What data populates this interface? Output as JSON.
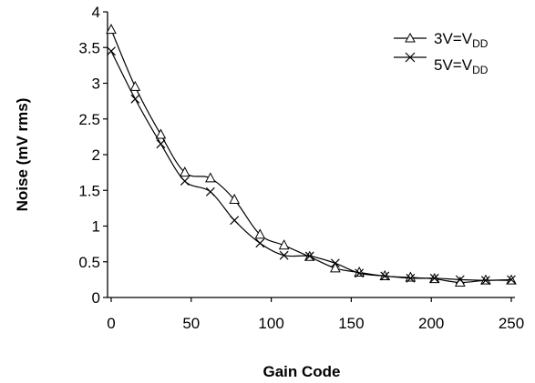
{
  "chart_data": {
    "type": "line",
    "title": "",
    "xlabel": "Gain Code",
    "ylabel": "Noise (mV rms)",
    "xlim": [
      0,
      250
    ],
    "ylim": [
      0,
      4
    ],
    "x_ticks": [
      "0",
      "50",
      "100",
      "150",
      "200",
      "250"
    ],
    "y_ticks": [
      "0",
      "0.5",
      "1",
      "1.5",
      "2",
      "2.5",
      "3",
      "3.5",
      "4"
    ],
    "grid": false,
    "legend_position": "top-right",
    "series": [
      {
        "name": "3V=V",
        "name_subscript": "DD",
        "marker": "triangle",
        "color": "#000000",
        "x": [
          0,
          15,
          31,
          46,
          62,
          77,
          93,
          108,
          124,
          140,
          155,
          171,
          187,
          202,
          218,
          234,
          250
        ],
        "y": [
          3.75,
          2.95,
          2.28,
          1.75,
          1.67,
          1.37,
          0.88,
          0.73,
          0.57,
          0.41,
          0.35,
          0.3,
          0.28,
          0.26,
          0.21,
          0.24,
          0.24
        ]
      },
      {
        "name": "5V=V",
        "name_subscript": "DD",
        "marker": "x",
        "color": "#000000",
        "x": [
          0,
          15,
          31,
          46,
          62,
          77,
          93,
          108,
          124,
          140,
          155,
          171,
          187,
          202,
          218,
          234,
          250
        ],
        "y": [
          3.45,
          2.78,
          2.15,
          1.63,
          1.48,
          1.08,
          0.76,
          0.59,
          0.58,
          0.48,
          0.34,
          0.3,
          0.27,
          0.27,
          0.25,
          0.24,
          0.25
        ]
      }
    ]
  }
}
